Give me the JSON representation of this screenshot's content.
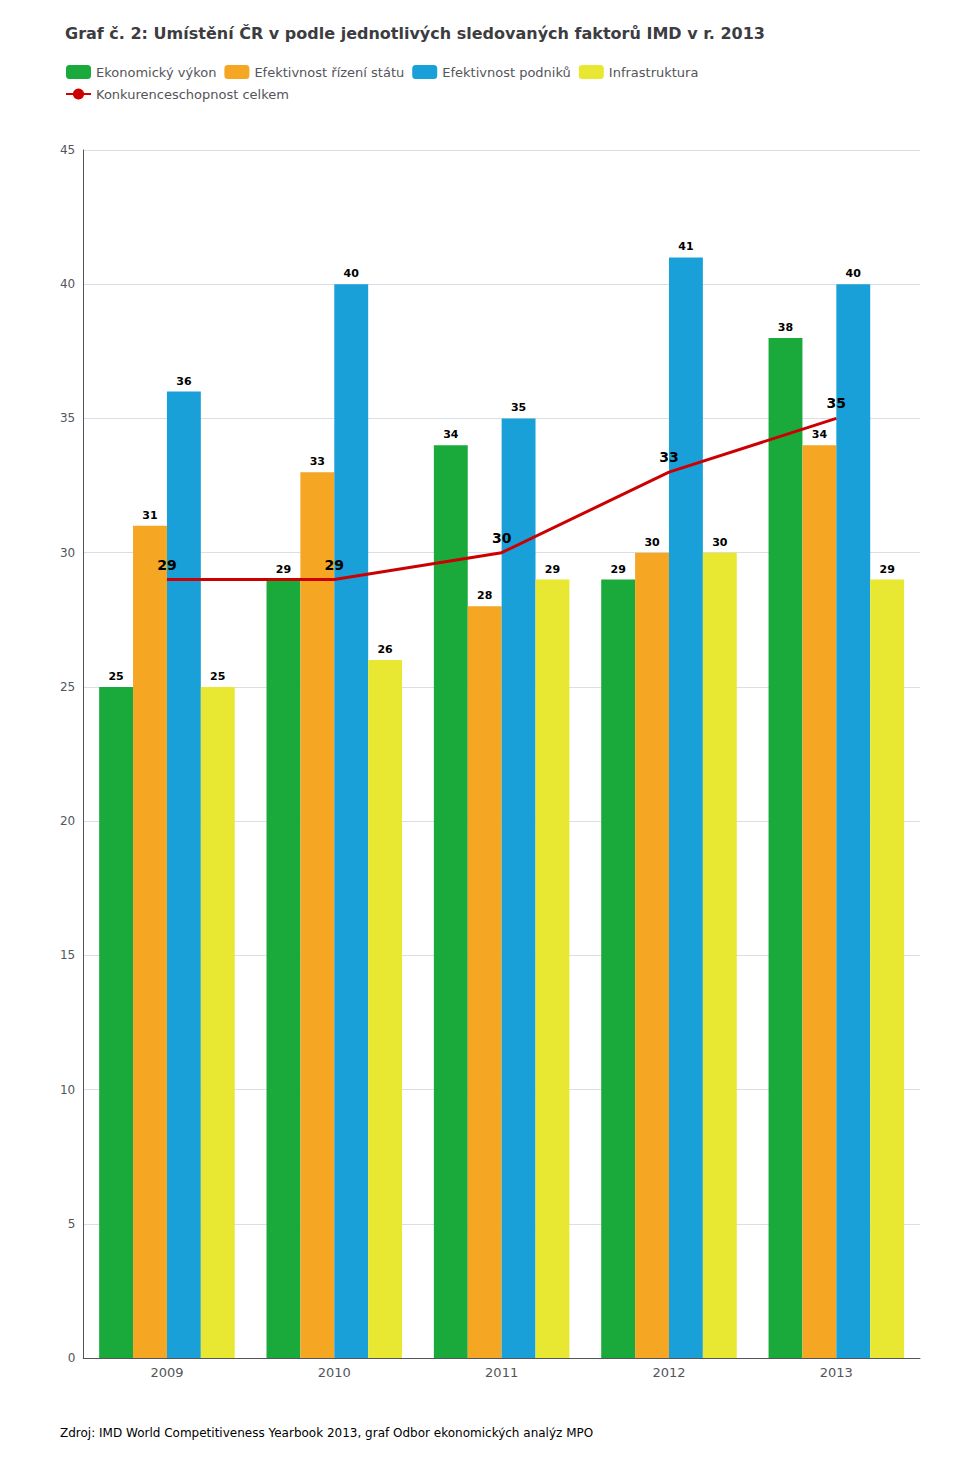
{
  "chart_data": {
    "type": "bar",
    "title": "Graf č. 2: Umístění ČR v podle jednotlivých sledovaných faktorů IMD v r. 2013",
    "categories": [
      "2009",
      "2010",
      "2011",
      "2012",
      "2013"
    ],
    "series": [
      {
        "name": "Ekonomický výkon",
        "type": "bar",
        "color": "#1aaa3c",
        "values": [
          25,
          29,
          34,
          29,
          38
        ]
      },
      {
        "name": "Efektivnost řízení státu",
        "type": "bar",
        "color": "#f5a623",
        "values": [
          31,
          33,
          28,
          30,
          34
        ]
      },
      {
        "name": "Efektivnost podniků",
        "type": "bar",
        "color": "#1aa0d8",
        "values": [
          36,
          40,
          35,
          41,
          40
        ]
      },
      {
        "name": "Infrastruktura",
        "type": "bar",
        "color": "#e8e832",
        "values": [
          25,
          26,
          29,
          30,
          29
        ]
      },
      {
        "name": "Konkurenceschopnost celkem",
        "type": "line",
        "color": "#cc0000",
        "values": [
          29,
          29,
          30,
          33,
          35
        ]
      }
    ],
    "ylim": [
      0,
      45
    ],
    "yticks": [
      0,
      5,
      10,
      15,
      20,
      25,
      30,
      35,
      40,
      45
    ],
    "grid": true,
    "legend": "upper left",
    "data_labels": true,
    "annotations": [
      "Zdroj: IMD World Competitiveness Yearbook 2013, graf Odbor ekonomických analýz MPO"
    ]
  }
}
